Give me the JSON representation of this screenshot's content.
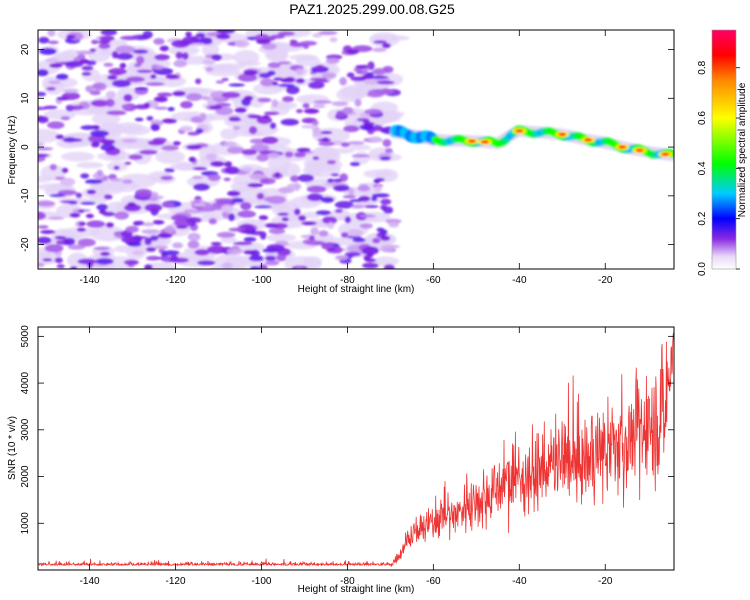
{
  "title": "PAZ1.2025.299.00.08.G25",
  "chart_data": [
    {
      "type": "heatmap",
      "name": "spectrogram",
      "xlabel": "Height of straight line (km)",
      "ylabel": "Frequency (Hz)",
      "xlim": [
        -152,
        -4
      ],
      "ylim": [
        -25,
        24
      ],
      "xticks": [
        -140,
        -120,
        -100,
        -80,
        -60,
        -40,
        -20
      ],
      "yticks": [
        -20,
        -10,
        0,
        10,
        20
      ],
      "noise_region_x": [
        -152,
        -69
      ],
      "signal_trace": {
        "x": [
          -69,
          -65,
          -60,
          -55,
          -50,
          -45,
          -42,
          -40,
          -35,
          -30,
          -25,
          -20,
          -15,
          -10,
          -5
        ],
        "y": [
          3,
          2.5,
          1.5,
          1.3,
          1.2,
          0.8,
          2.5,
          3.3,
          3.0,
          2.6,
          1.6,
          0.9,
          -0.2,
          -1.0,
          -1.6
        ]
      },
      "colorbar": {
        "label": "Normalized spectral amplitude",
        "ticks": [
          0.0,
          0.2,
          0.4,
          0.6,
          0.8
        ],
        "tick_labels": [
          "0.0",
          "0.2",
          "0.4",
          "0.6",
          "0.8"
        ],
        "range": [
          0,
          0.95
        ],
        "stops": [
          {
            "v": 0.0,
            "color": "#ffffff"
          },
          {
            "v": 0.05,
            "color": "#e8d8f8"
          },
          {
            "v": 0.12,
            "color": "#8a2be2"
          },
          {
            "v": 0.2,
            "color": "#0000ff"
          },
          {
            "v": 0.3,
            "color": "#00ccff"
          },
          {
            "v": 0.42,
            "color": "#00ff00"
          },
          {
            "v": 0.6,
            "color": "#ffff00"
          },
          {
            "v": 0.75,
            "color": "#ff8800"
          },
          {
            "v": 0.85,
            "color": "#ff0000"
          },
          {
            "v": 0.95,
            "color": "#ff0066"
          }
        ]
      }
    },
    {
      "type": "line",
      "name": "snr",
      "xlabel": "Height of straight line (km)",
      "ylabel": "SNR (10 * v/v)",
      "xlim": [
        -152,
        -4
      ],
      "ylim": [
        0,
        5200
      ],
      "xticks": [
        -140,
        -120,
        -100,
        -80,
        -60,
        -40,
        -20
      ],
      "yticks": [
        1000,
        2000,
        3000,
        4000,
        5000
      ],
      "line_color": "#ee3333",
      "trend": {
        "x": [
          -152,
          -70,
          -68,
          -66,
          -64,
          -62,
          -60,
          -58,
          -56,
          -54,
          -52,
          -50,
          -48,
          -46,
          -44,
          -42,
          -40,
          -38,
          -36,
          -34,
          -32,
          -30,
          -28,
          -26,
          -24,
          -22,
          -20,
          -18,
          -16,
          -14,
          -12,
          -10,
          -8,
          -6,
          -5,
          -4
        ],
        "y": [
          100,
          100,
          300,
          700,
          800,
          900,
          1000,
          1200,
          1150,
          1250,
          1400,
          1500,
          1550,
          1700,
          1800,
          2000,
          1900,
          2100,
          2000,
          2200,
          2250,
          2300,
          2350,
          2300,
          2350,
          2450,
          2500,
          2600,
          2700,
          2850,
          2900,
          3000,
          3200,
          3400,
          3600,
          4500
        ]
      }
    }
  ]
}
